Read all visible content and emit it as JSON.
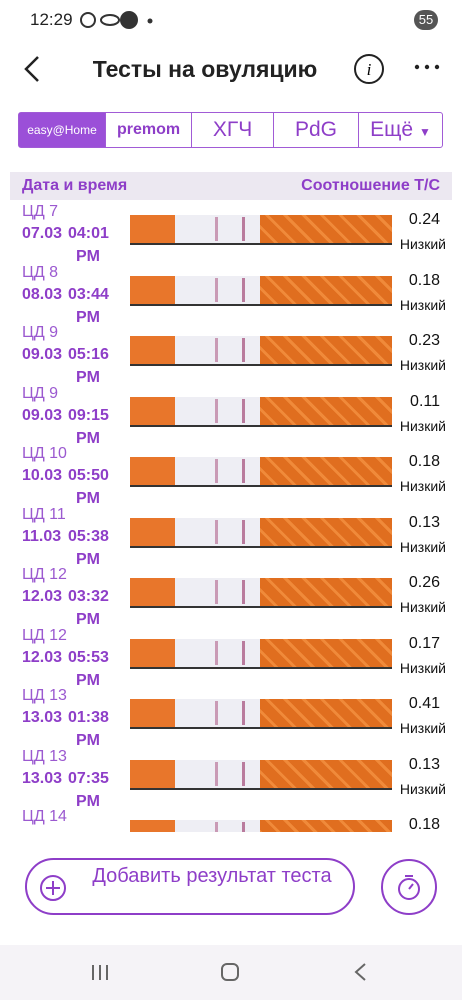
{
  "status_bar": {
    "time": "12:29",
    "battery": "55"
  },
  "header": {
    "title": "Тесты на овуляцию"
  },
  "tabs": [
    "easy@Home",
    "premom",
    "ХГЧ",
    "PdG",
    "Ещё"
  ],
  "table": {
    "columns": [
      "Дата и время",
      "Соотношение Т/С"
    ],
    "rows": [
      {
        "cycle_day": "ЦД 7",
        "date": "07.03",
        "time": "04:01",
        "ampm": "PM",
        "ratio": "0.24",
        "level": "Низкий"
      },
      {
        "cycle_day": "ЦД 8",
        "date": "08.03",
        "time": "03:44",
        "ampm": "PM",
        "ratio": "0.18",
        "level": "Низкий"
      },
      {
        "cycle_day": "ЦД 9",
        "date": "09.03",
        "time": "05:16",
        "ampm": "PM",
        "ratio": "0.23",
        "level": "Низкий"
      },
      {
        "cycle_day": "ЦД 9",
        "date": "09.03",
        "time": "09:15",
        "ampm": "PM",
        "ratio": "0.11",
        "level": "Низкий"
      },
      {
        "cycle_day": "ЦД 10",
        "date": "10.03",
        "time": "05:50",
        "ampm": "PM",
        "ratio": "0.18",
        "level": "Низкий"
      },
      {
        "cycle_day": "ЦД 11",
        "date": "11.03",
        "time": "05:38",
        "ampm": "PM",
        "ratio": "0.13",
        "level": "Низкий"
      },
      {
        "cycle_day": "ЦД 12",
        "date": "12.03",
        "time": "03:32",
        "ampm": "PM",
        "ratio": "0.26",
        "level": "Низкий"
      },
      {
        "cycle_day": "ЦД 12",
        "date": "12.03",
        "time": "05:53",
        "ampm": "PM",
        "ratio": "0.17",
        "level": "Низкий"
      },
      {
        "cycle_day": "ЦД 13",
        "date": "13.03",
        "time": "01:38",
        "ampm": "PM",
        "ratio": "0.41",
        "level": "Низкий"
      },
      {
        "cycle_day": "ЦД 13",
        "date": "13.03",
        "time": "07:35",
        "ampm": "PM",
        "ratio": "0.13",
        "level": "Низкий"
      },
      {
        "cycle_day": "ЦД 14",
        "ratio": "0.18"
      }
    ]
  },
  "add_button": "Добавить результат теста"
}
